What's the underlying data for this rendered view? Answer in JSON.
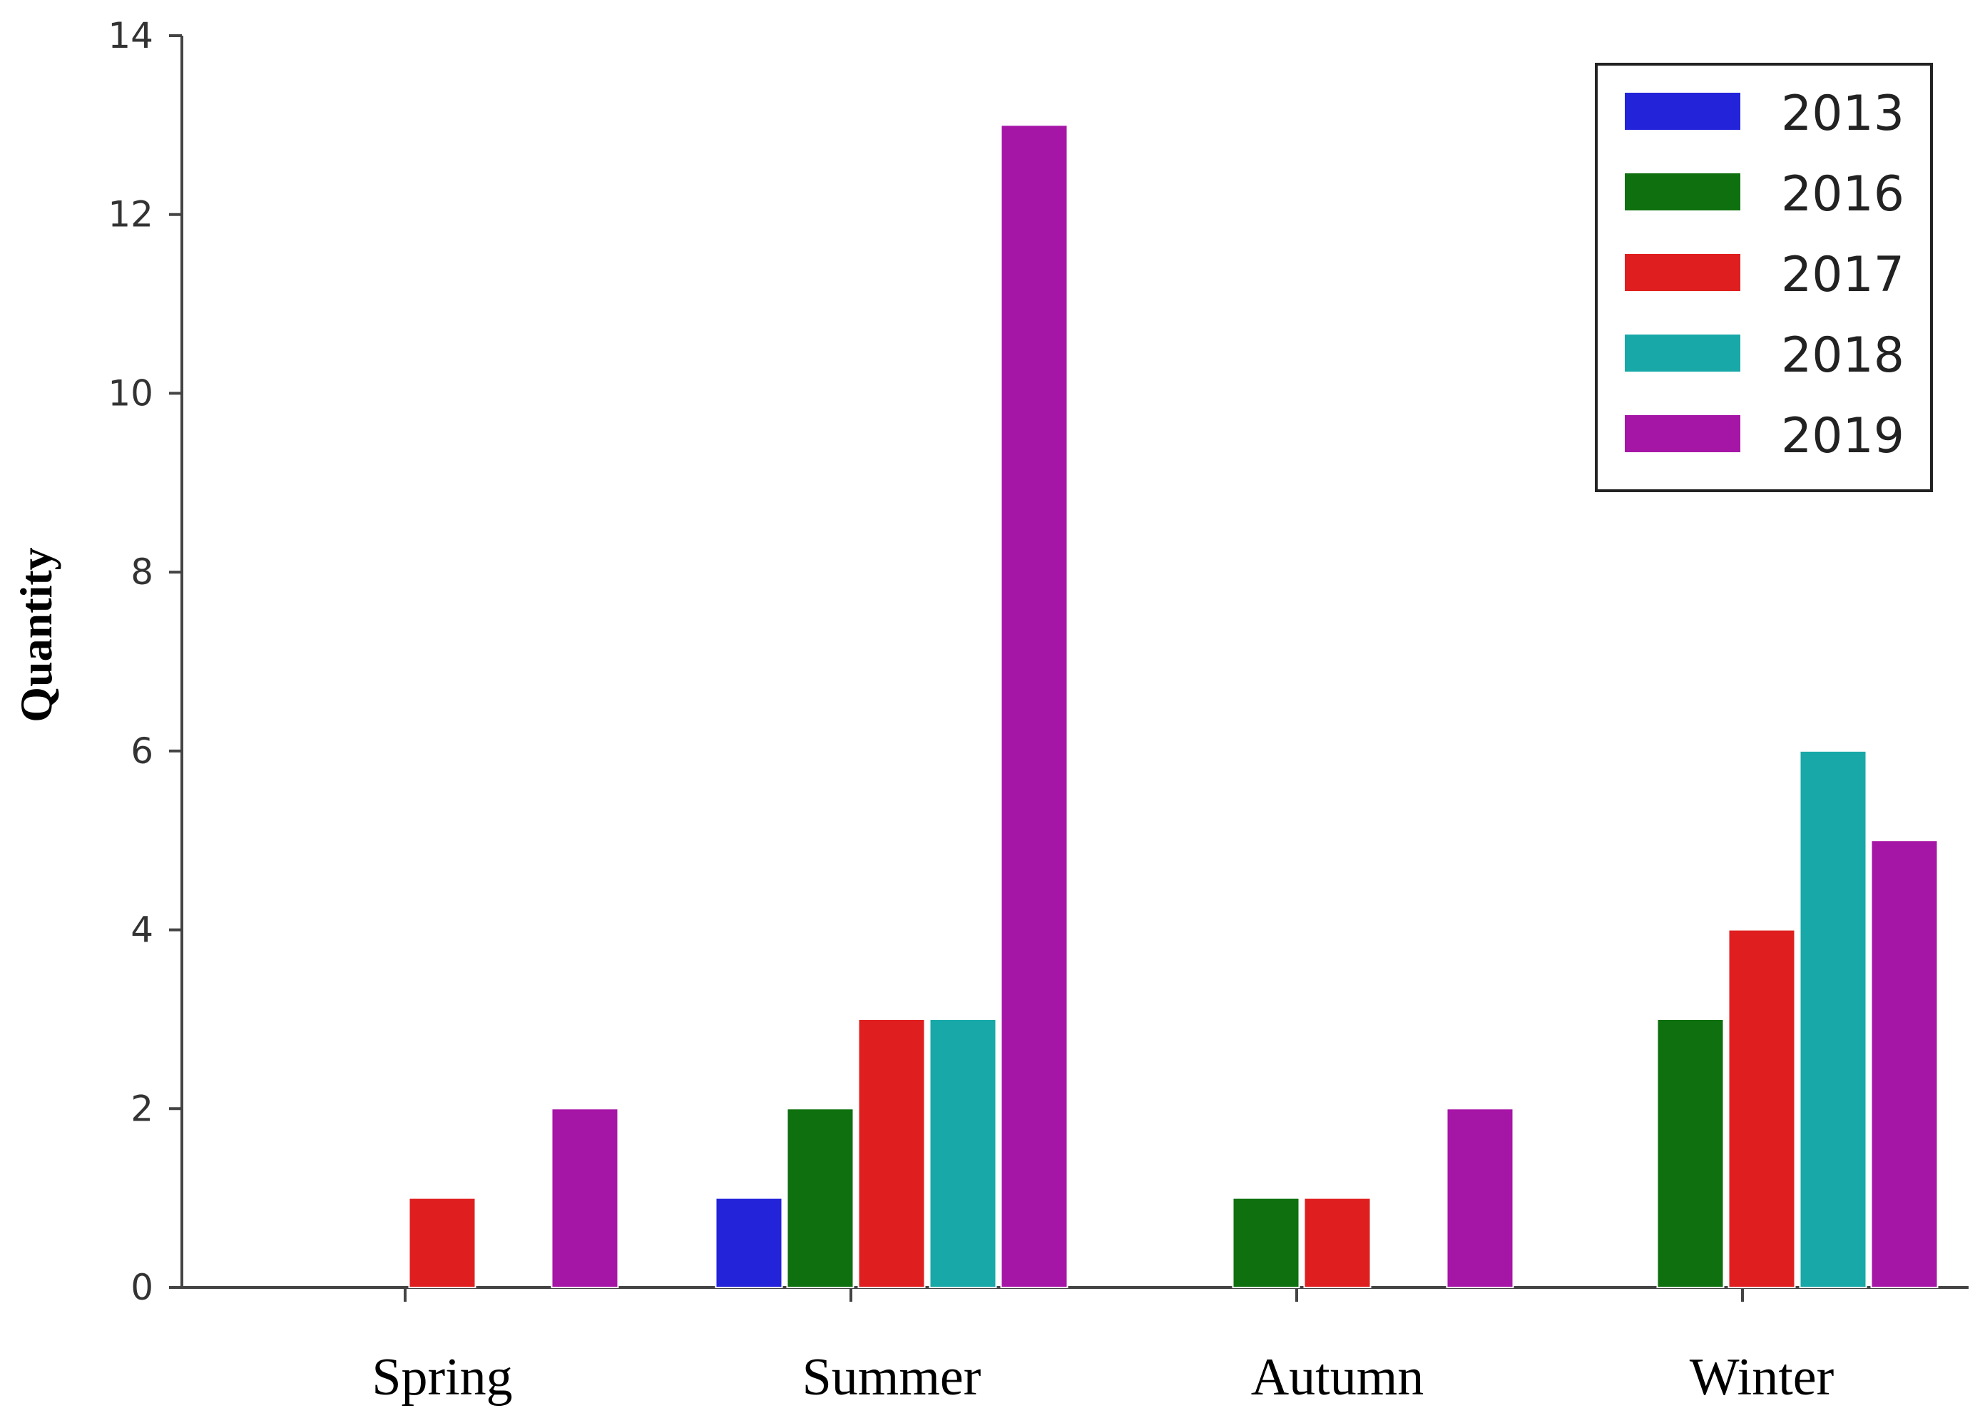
{
  "chart_data": {
    "type": "bar",
    "categories": [
      "Spring",
      "Summer",
      "Autumn",
      "Winter"
    ],
    "series": [
      {
        "name": "2013",
        "color": "#2323d9",
        "values": [
          0,
          1,
          0,
          0
        ]
      },
      {
        "name": "2016",
        "color": "#0e700e",
        "values": [
          0,
          2,
          1,
          3
        ]
      },
      {
        "name": "2017",
        "color": "#df1f1f",
        "values": [
          1,
          3,
          1,
          4
        ]
      },
      {
        "name": "2018",
        "color": "#18a8a8",
        "values": [
          0,
          3,
          0,
          6
        ]
      },
      {
        "name": "2019",
        "color": "#a616a6",
        "values": [
          2,
          13,
          2,
          5
        ]
      }
    ],
    "title": "",
    "xlabel": "",
    "ylabel": "Quantity",
    "ylim": [
      0,
      14
    ],
    "yticks": [
      "0",
      "2",
      "4",
      "6",
      "8",
      "10",
      "12",
      "14"
    ],
    "grid": false,
    "legend_position": "top-right"
  }
}
